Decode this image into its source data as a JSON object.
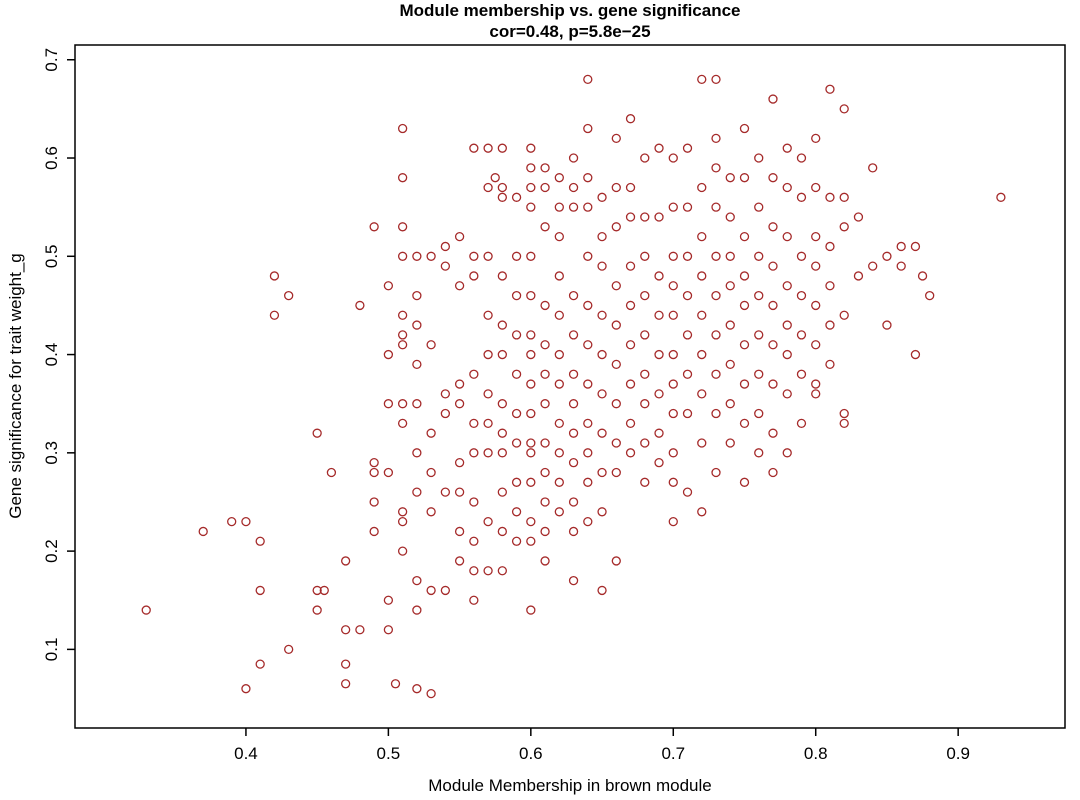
{
  "chart_data": {
    "type": "scatter",
    "title": "Module membership vs. gene significance",
    "subtitle": "cor=0.48, p=5.8e−25",
    "xlabel": "Module Membership in brown module",
    "ylabel": "Gene significance for trait weight_g",
    "xlim": [
      0.28,
      0.975
    ],
    "ylim": [
      0.02,
      0.715
    ],
    "x_ticks": [
      0.4,
      0.5,
      0.6,
      0.7,
      0.8,
      0.9
    ],
    "y_ticks": [
      0.1,
      0.2,
      0.3,
      0.4,
      0.5,
      0.6,
      0.7
    ],
    "grid": false,
    "legend": "none",
    "marker": "open-circle",
    "point_color": "#A52A2A",
    "axis_color": "#000000",
    "points": [
      [
        0.33,
        0.14
      ],
      [
        0.37,
        0.22
      ],
      [
        0.39,
        0.23
      ],
      [
        0.4,
        0.23
      ],
      [
        0.4,
        0.06
      ],
      [
        0.41,
        0.085
      ],
      [
        0.41,
        0.21
      ],
      [
        0.41,
        0.16
      ],
      [
        0.42,
        0.48
      ],
      [
        0.42,
        0.44
      ],
      [
        0.43,
        0.46
      ],
      [
        0.43,
        0.1
      ],
      [
        0.45,
        0.32
      ],
      [
        0.45,
        0.16
      ],
      [
        0.455,
        0.16
      ],
      [
        0.45,
        0.14
      ],
      [
        0.46,
        0.28
      ],
      [
        0.47,
        0.19
      ],
      [
        0.47,
        0.12
      ],
      [
        0.47,
        0.085
      ],
      [
        0.47,
        0.065
      ],
      [
        0.48,
        0.12
      ],
      [
        0.48,
        0.45
      ],
      [
        0.49,
        0.53
      ],
      [
        0.49,
        0.29
      ],
      [
        0.49,
        0.28
      ],
      [
        0.49,
        0.22
      ],
      [
        0.49,
        0.25
      ],
      [
        0.5,
        0.47
      ],
      [
        0.5,
        0.4
      ],
      [
        0.5,
        0.35
      ],
      [
        0.5,
        0.28
      ],
      [
        0.5,
        0.15
      ],
      [
        0.5,
        0.12
      ],
      [
        0.505,
        0.065
      ],
      [
        0.51,
        0.63
      ],
      [
        0.51,
        0.58
      ],
      [
        0.51,
        0.53
      ],
      [
        0.51,
        0.5
      ],
      [
        0.51,
        0.44
      ],
      [
        0.51,
        0.42
      ],
      [
        0.51,
        0.41
      ],
      [
        0.51,
        0.35
      ],
      [
        0.51,
        0.33
      ],
      [
        0.51,
        0.24
      ],
      [
        0.51,
        0.23
      ],
      [
        0.51,
        0.2
      ],
      [
        0.52,
        0.5
      ],
      [
        0.52,
        0.46
      ],
      [
        0.52,
        0.43
      ],
      [
        0.52,
        0.39
      ],
      [
        0.52,
        0.35
      ],
      [
        0.52,
        0.3
      ],
      [
        0.52,
        0.26
      ],
      [
        0.52,
        0.17
      ],
      [
        0.52,
        0.14
      ],
      [
        0.52,
        0.06
      ],
      [
        0.53,
        0.5
      ],
      [
        0.53,
        0.41
      ],
      [
        0.53,
        0.32
      ],
      [
        0.53,
        0.28
      ],
      [
        0.53,
        0.24
      ],
      [
        0.53,
        0.16
      ],
      [
        0.53,
        0.055
      ],
      [
        0.54,
        0.51
      ],
      [
        0.54,
        0.49
      ],
      [
        0.54,
        0.36
      ],
      [
        0.54,
        0.34
      ],
      [
        0.54,
        0.26
      ],
      [
        0.54,
        0.16
      ],
      [
        0.55,
        0.52
      ],
      [
        0.55,
        0.47
      ],
      [
        0.55,
        0.37
      ],
      [
        0.55,
        0.35
      ],
      [
        0.55,
        0.29
      ],
      [
        0.55,
        0.26
      ],
      [
        0.55,
        0.22
      ],
      [
        0.55,
        0.19
      ],
      [
        0.56,
        0.61
      ],
      [
        0.56,
        0.5
      ],
      [
        0.56,
        0.48
      ],
      [
        0.56,
        0.38
      ],
      [
        0.56,
        0.33
      ],
      [
        0.56,
        0.3
      ],
      [
        0.56,
        0.25
      ],
      [
        0.56,
        0.21
      ],
      [
        0.56,
        0.18
      ],
      [
        0.56,
        0.15
      ],
      [
        0.57,
        0.61
      ],
      [
        0.57,
        0.57
      ],
      [
        0.57,
        0.5
      ],
      [
        0.57,
        0.44
      ],
      [
        0.57,
        0.4
      ],
      [
        0.57,
        0.36
      ],
      [
        0.57,
        0.33
      ],
      [
        0.57,
        0.3
      ],
      [
        0.57,
        0.23
      ],
      [
        0.57,
        0.18
      ],
      [
        0.575,
        0.58
      ],
      [
        0.58,
        0.61
      ],
      [
        0.58,
        0.57
      ],
      [
        0.58,
        0.56
      ],
      [
        0.58,
        0.48
      ],
      [
        0.58,
        0.43
      ],
      [
        0.58,
        0.4
      ],
      [
        0.58,
        0.35
      ],
      [
        0.58,
        0.32
      ],
      [
        0.58,
        0.3
      ],
      [
        0.58,
        0.26
      ],
      [
        0.58,
        0.22
      ],
      [
        0.58,
        0.18
      ],
      [
        0.59,
        0.56
      ],
      [
        0.59,
        0.5
      ],
      [
        0.59,
        0.46
      ],
      [
        0.59,
        0.42
      ],
      [
        0.59,
        0.38
      ],
      [
        0.59,
        0.34
      ],
      [
        0.59,
        0.31
      ],
      [
        0.59,
        0.27
      ],
      [
        0.59,
        0.24
      ],
      [
        0.59,
        0.21
      ],
      [
        0.6,
        0.61
      ],
      [
        0.6,
        0.59
      ],
      [
        0.6,
        0.57
      ],
      [
        0.6,
        0.55
      ],
      [
        0.6,
        0.5
      ],
      [
        0.6,
        0.46
      ],
      [
        0.6,
        0.42
      ],
      [
        0.6,
        0.4
      ],
      [
        0.6,
        0.37
      ],
      [
        0.6,
        0.34
      ],
      [
        0.6,
        0.31
      ],
      [
        0.6,
        0.3
      ],
      [
        0.6,
        0.27
      ],
      [
        0.6,
        0.23
      ],
      [
        0.6,
        0.21
      ],
      [
        0.6,
        0.14
      ],
      [
        0.61,
        0.59
      ],
      [
        0.61,
        0.57
      ],
      [
        0.61,
        0.53
      ],
      [
        0.61,
        0.45
      ],
      [
        0.61,
        0.41
      ],
      [
        0.61,
        0.38
      ],
      [
        0.61,
        0.35
      ],
      [
        0.61,
        0.31
      ],
      [
        0.61,
        0.28
      ],
      [
        0.61,
        0.25
      ],
      [
        0.61,
        0.22
      ],
      [
        0.61,
        0.19
      ],
      [
        0.62,
        0.58
      ],
      [
        0.62,
        0.55
      ],
      [
        0.62,
        0.52
      ],
      [
        0.62,
        0.48
      ],
      [
        0.62,
        0.44
      ],
      [
        0.62,
        0.4
      ],
      [
        0.62,
        0.37
      ],
      [
        0.62,
        0.33
      ],
      [
        0.62,
        0.3
      ],
      [
        0.62,
        0.27
      ],
      [
        0.62,
        0.24
      ],
      [
        0.63,
        0.6
      ],
      [
        0.63,
        0.57
      ],
      [
        0.63,
        0.55
      ],
      [
        0.63,
        0.46
      ],
      [
        0.63,
        0.42
      ],
      [
        0.63,
        0.38
      ],
      [
        0.63,
        0.35
      ],
      [
        0.63,
        0.32
      ],
      [
        0.63,
        0.29
      ],
      [
        0.63,
        0.25
      ],
      [
        0.63,
        0.22
      ],
      [
        0.63,
        0.17
      ],
      [
        0.64,
        0.68
      ],
      [
        0.64,
        0.63
      ],
      [
        0.64,
        0.58
      ],
      [
        0.64,
        0.55
      ],
      [
        0.64,
        0.5
      ],
      [
        0.64,
        0.45
      ],
      [
        0.64,
        0.41
      ],
      [
        0.64,
        0.37
      ],
      [
        0.64,
        0.33
      ],
      [
        0.64,
        0.3
      ],
      [
        0.64,
        0.27
      ],
      [
        0.64,
        0.23
      ],
      [
        0.65,
        0.56
      ],
      [
        0.65,
        0.52
      ],
      [
        0.65,
        0.49
      ],
      [
        0.65,
        0.44
      ],
      [
        0.65,
        0.4
      ],
      [
        0.65,
        0.36
      ],
      [
        0.65,
        0.32
      ],
      [
        0.65,
        0.28
      ],
      [
        0.65,
        0.24
      ],
      [
        0.65,
        0.16
      ],
      [
        0.66,
        0.62
      ],
      [
        0.66,
        0.57
      ],
      [
        0.66,
        0.53
      ],
      [
        0.66,
        0.47
      ],
      [
        0.66,
        0.43
      ],
      [
        0.66,
        0.39
      ],
      [
        0.66,
        0.35
      ],
      [
        0.66,
        0.31
      ],
      [
        0.66,
        0.28
      ],
      [
        0.66,
        0.19
      ],
      [
        0.67,
        0.64
      ],
      [
        0.67,
        0.57
      ],
      [
        0.67,
        0.54
      ],
      [
        0.67,
        0.49
      ],
      [
        0.67,
        0.45
      ],
      [
        0.67,
        0.41
      ],
      [
        0.67,
        0.37
      ],
      [
        0.67,
        0.33
      ],
      [
        0.67,
        0.3
      ],
      [
        0.68,
        0.6
      ],
      [
        0.68,
        0.54
      ],
      [
        0.68,
        0.5
      ],
      [
        0.68,
        0.46
      ],
      [
        0.68,
        0.42
      ],
      [
        0.68,
        0.38
      ],
      [
        0.68,
        0.35
      ],
      [
        0.68,
        0.31
      ],
      [
        0.68,
        0.27
      ],
      [
        0.69,
        0.61
      ],
      [
        0.69,
        0.54
      ],
      [
        0.69,
        0.48
      ],
      [
        0.69,
        0.44
      ],
      [
        0.69,
        0.4
      ],
      [
        0.69,
        0.36
      ],
      [
        0.69,
        0.32
      ],
      [
        0.69,
        0.29
      ],
      [
        0.7,
        0.6
      ],
      [
        0.7,
        0.55
      ],
      [
        0.7,
        0.5
      ],
      [
        0.7,
        0.47
      ],
      [
        0.7,
        0.44
      ],
      [
        0.7,
        0.4
      ],
      [
        0.7,
        0.37
      ],
      [
        0.7,
        0.34
      ],
      [
        0.7,
        0.3
      ],
      [
        0.7,
        0.27
      ],
      [
        0.7,
        0.23
      ],
      [
        0.71,
        0.61
      ],
      [
        0.71,
        0.55
      ],
      [
        0.71,
        0.5
      ],
      [
        0.71,
        0.46
      ],
      [
        0.71,
        0.42
      ],
      [
        0.71,
        0.38
      ],
      [
        0.71,
        0.34
      ],
      [
        0.71,
        0.26
      ],
      [
        0.72,
        0.68
      ],
      [
        0.72,
        0.57
      ],
      [
        0.72,
        0.52
      ],
      [
        0.72,
        0.48
      ],
      [
        0.72,
        0.44
      ],
      [
        0.72,
        0.4
      ],
      [
        0.72,
        0.36
      ],
      [
        0.72,
        0.31
      ],
      [
        0.72,
        0.24
      ],
      [
        0.73,
        0.68
      ],
      [
        0.73,
        0.62
      ],
      [
        0.73,
        0.59
      ],
      [
        0.73,
        0.55
      ],
      [
        0.73,
        0.5
      ],
      [
        0.73,
        0.46
      ],
      [
        0.73,
        0.42
      ],
      [
        0.73,
        0.38
      ],
      [
        0.73,
        0.34
      ],
      [
        0.73,
        0.28
      ],
      [
        0.74,
        0.58
      ],
      [
        0.74,
        0.54
      ],
      [
        0.74,
        0.5
      ],
      [
        0.74,
        0.47
      ],
      [
        0.74,
        0.43
      ],
      [
        0.74,
        0.39
      ],
      [
        0.74,
        0.35
      ],
      [
        0.74,
        0.31
      ],
      [
        0.75,
        0.63
      ],
      [
        0.75,
        0.58
      ],
      [
        0.75,
        0.52
      ],
      [
        0.75,
        0.48
      ],
      [
        0.75,
        0.45
      ],
      [
        0.75,
        0.41
      ],
      [
        0.75,
        0.37
      ],
      [
        0.75,
        0.33
      ],
      [
        0.75,
        0.27
      ],
      [
        0.76,
        0.6
      ],
      [
        0.76,
        0.55
      ],
      [
        0.76,
        0.5
      ],
      [
        0.76,
        0.46
      ],
      [
        0.76,
        0.42
      ],
      [
        0.76,
        0.38
      ],
      [
        0.76,
        0.34
      ],
      [
        0.76,
        0.3
      ],
      [
        0.77,
        0.66
      ],
      [
        0.77,
        0.58
      ],
      [
        0.77,
        0.53
      ],
      [
        0.77,
        0.49
      ],
      [
        0.77,
        0.45
      ],
      [
        0.77,
        0.41
      ],
      [
        0.77,
        0.37
      ],
      [
        0.77,
        0.32
      ],
      [
        0.77,
        0.28
      ],
      [
        0.78,
        0.61
      ],
      [
        0.78,
        0.57
      ],
      [
        0.78,
        0.52
      ],
      [
        0.78,
        0.47
      ],
      [
        0.78,
        0.43
      ],
      [
        0.78,
        0.4
      ],
      [
        0.78,
        0.36
      ],
      [
        0.78,
        0.3
      ],
      [
        0.79,
        0.6
      ],
      [
        0.79,
        0.56
      ],
      [
        0.79,
        0.5
      ],
      [
        0.79,
        0.46
      ],
      [
        0.79,
        0.42
      ],
      [
        0.79,
        0.38
      ],
      [
        0.79,
        0.33
      ],
      [
        0.8,
        0.62
      ],
      [
        0.8,
        0.57
      ],
      [
        0.8,
        0.52
      ],
      [
        0.8,
        0.49
      ],
      [
        0.8,
        0.45
      ],
      [
        0.8,
        0.41
      ],
      [
        0.8,
        0.37
      ],
      [
        0.8,
        0.36
      ],
      [
        0.81,
        0.67
      ],
      [
        0.81,
        0.56
      ],
      [
        0.81,
        0.51
      ],
      [
        0.81,
        0.47
      ],
      [
        0.81,
        0.43
      ],
      [
        0.81,
        0.39
      ],
      [
        0.82,
        0.65
      ],
      [
        0.82,
        0.56
      ],
      [
        0.82,
        0.53
      ],
      [
        0.82,
        0.44
      ],
      [
        0.82,
        0.34
      ],
      [
        0.82,
        0.33
      ],
      [
        0.83,
        0.54
      ],
      [
        0.83,
        0.48
      ],
      [
        0.84,
        0.59
      ],
      [
        0.84,
        0.49
      ],
      [
        0.85,
        0.5
      ],
      [
        0.85,
        0.43
      ],
      [
        0.86,
        0.49
      ],
      [
        0.86,
        0.51
      ],
      [
        0.87,
        0.51
      ],
      [
        0.87,
        0.4
      ],
      [
        0.875,
        0.48
      ],
      [
        0.88,
        0.46
      ],
      [
        0.93,
        0.56
      ]
    ]
  }
}
